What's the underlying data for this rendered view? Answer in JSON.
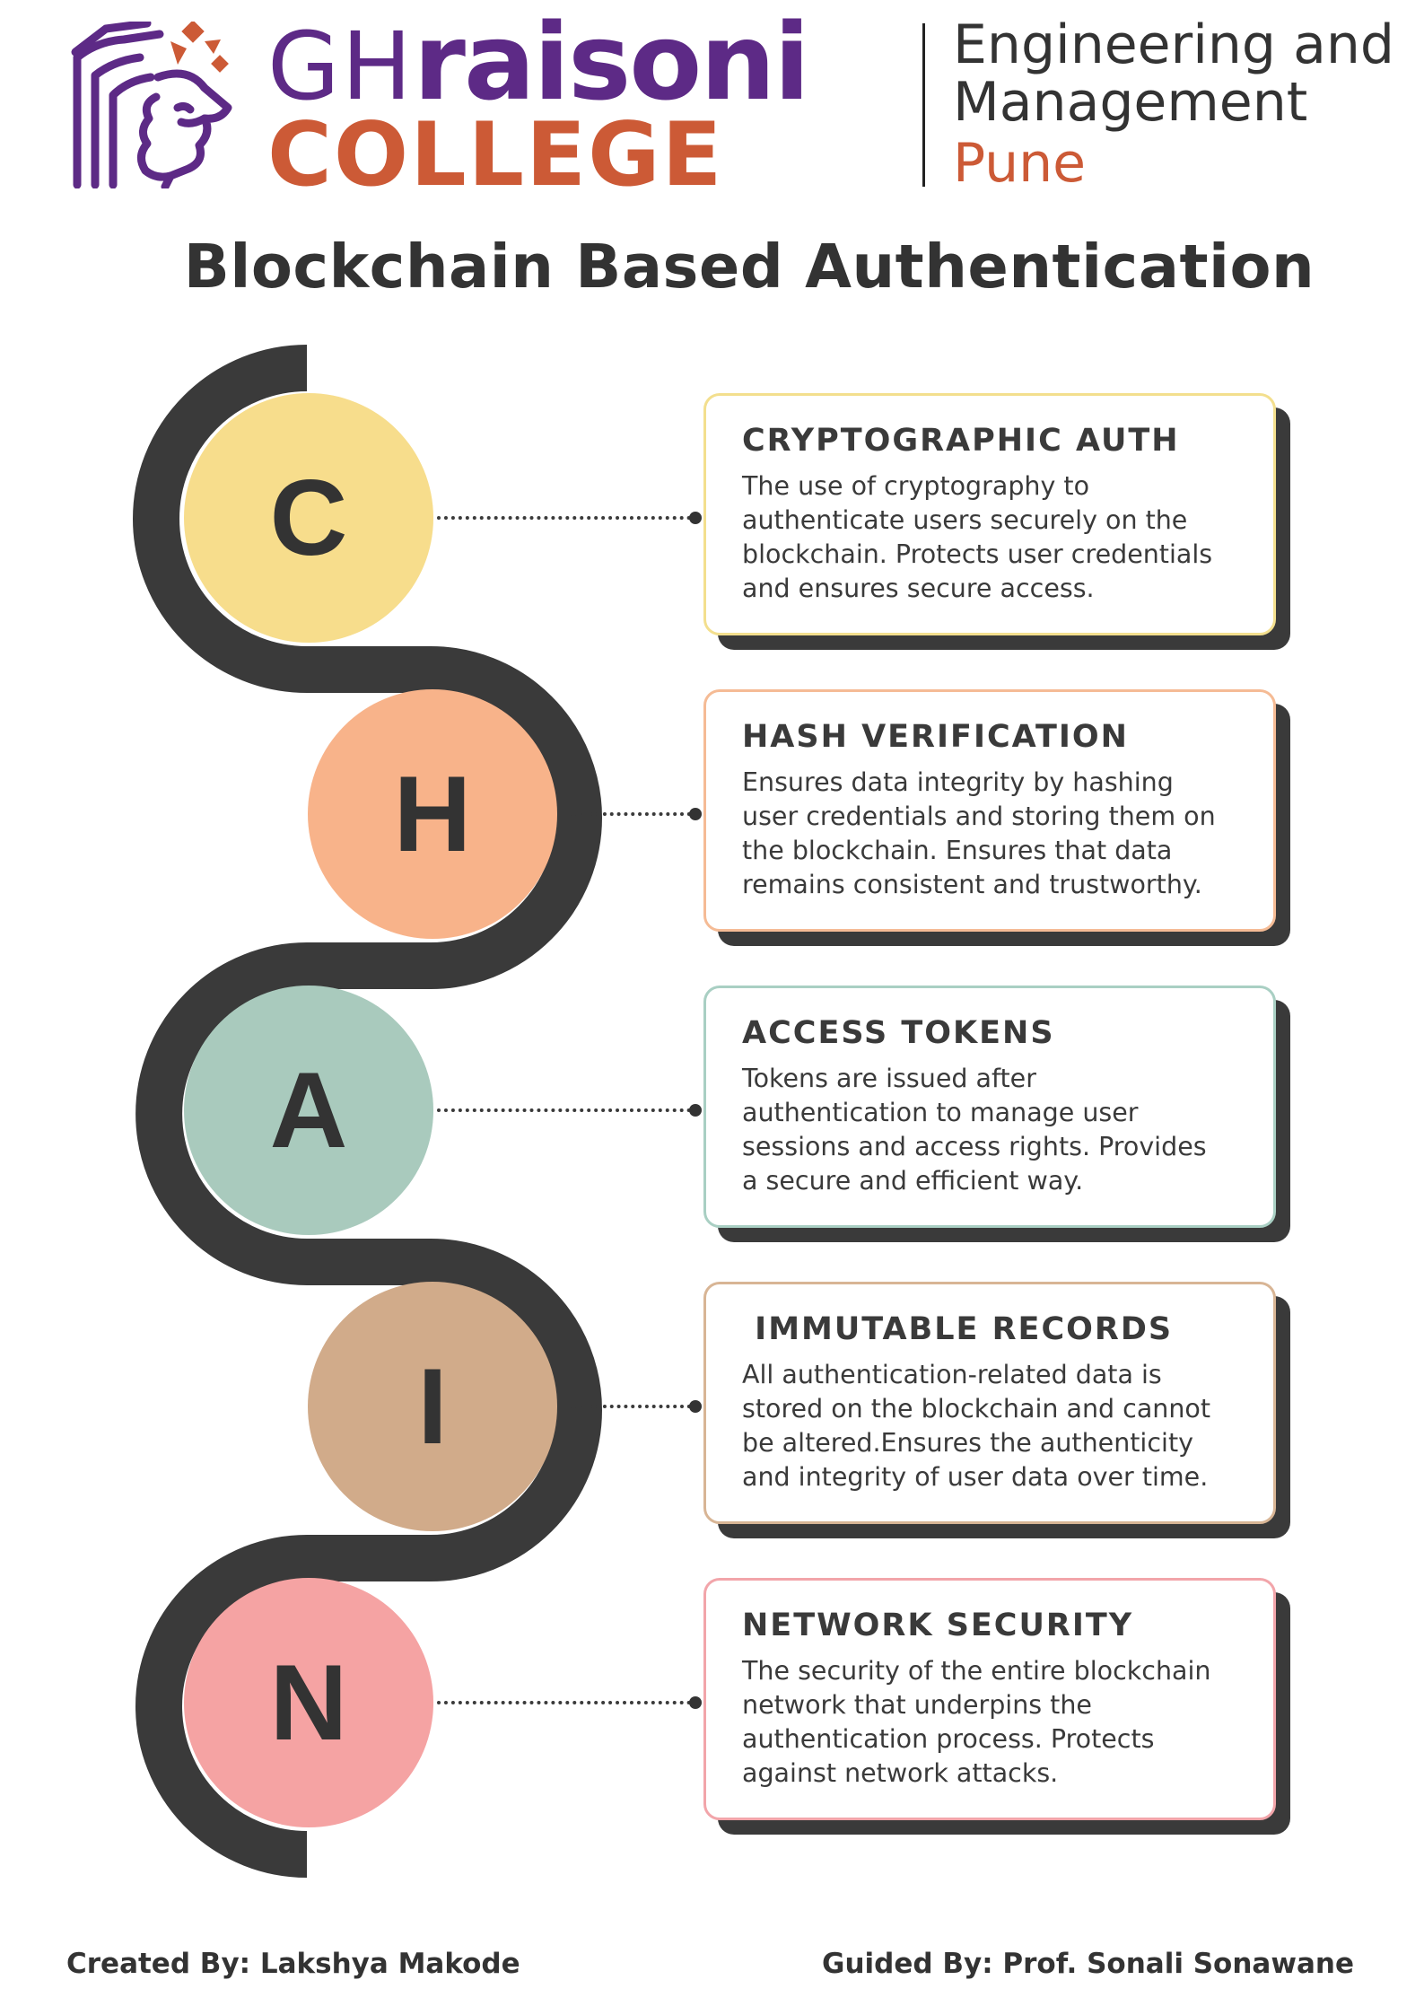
{
  "header": {
    "brand_gh": "GH",
    "brand_raisoni": "raisoni",
    "brand_college": "COLLEGE",
    "sub_line1": "Engineering and",
    "sub_line2": "Management",
    "sub_line3": "Pune",
    "logo_icon": "lion-head-logo-icon"
  },
  "title": "Blockchain Based Authentication",
  "colors": {
    "snake": "#3a3a3a",
    "purple": "#5d2a86",
    "orange": "#cc5a36"
  },
  "steps": [
    {
      "letter": "C",
      "circle_color": "#f7dd8c",
      "border_color": "#f3df8e",
      "title": "CRYPTOGRAPHIC AUTH",
      "body": "The use of cryptography to\nauthenticate users securely on the\nblockchain. Protects user credentials\nand ensures secure access."
    },
    {
      "letter": "H",
      "circle_color": "#f8b38a",
      "border_color": "#f5bb95",
      "title": "HASH VERIFICATION",
      "body": "Ensures data integrity by hashing\nuser credentials and storing them on\nthe blockchain. Ensures that data\nremains consistent and trustworthy."
    },
    {
      "letter": "A",
      "circle_color": "#a9cabd",
      "border_color": "#a9cfc3",
      "title": "ACCESS TOKENS",
      "body": "Tokens are issued after\nauthentication to manage user\nsessions and access rights. Provides\na secure and efficient way."
    },
    {
      "letter": "I",
      "circle_color": "#d1ab8a",
      "border_color": "#d8b595",
      "title": " IMMUTABLE RECORDS",
      "body": "All authentication-related data is\nstored on the blockchain and cannot\nbe altered.Ensures the authenticity\nand integrity of user data over time."
    },
    {
      "letter": "N",
      "circle_color": "#f5a3a3",
      "border_color": "#f2a5aa",
      "title": "NETWORK SECURITY",
      "body": " The security of the entire blockchain\nnetwork that underpins the\nauthentication process. Protects\nagainst network attacks."
    }
  ],
  "footer": {
    "created_by": "Created By: Lakshya Makode",
    "guided_by": "Guided By: Prof. Sonali Sonawane"
  }
}
